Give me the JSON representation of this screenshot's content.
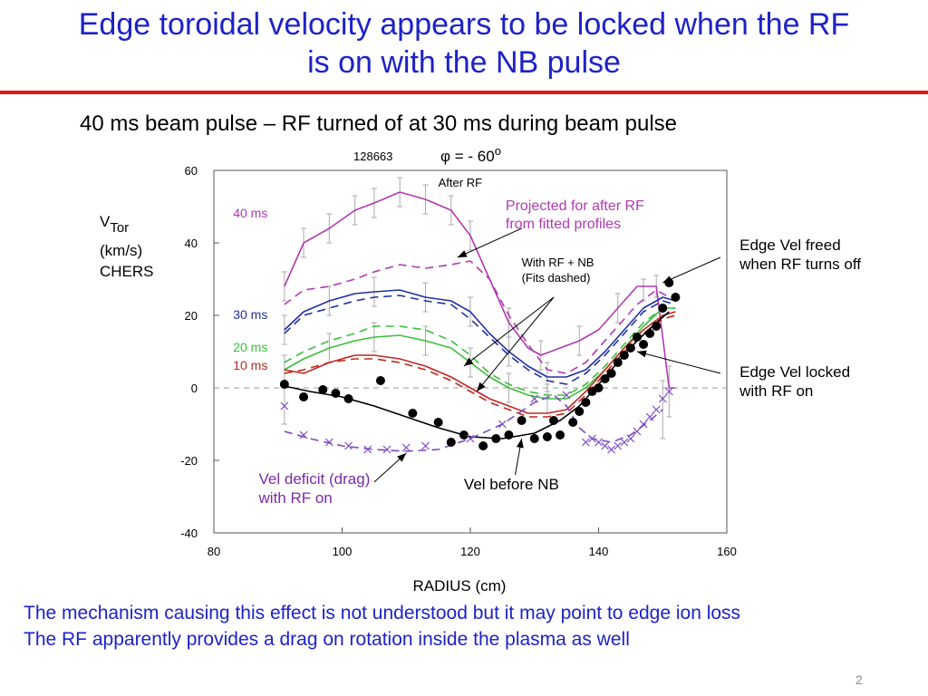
{
  "slide": {
    "title_line1": "Edge toroidal velocity appears to be locked when the RF",
    "title_line2": "is on with the NB pulse",
    "subtitle": "40 ms beam pulse – RF turned of at 30 ms during beam pulse",
    "bottom_line1": "The mechanism causing this effect is not understood but it may point to edge ion loss",
    "bottom_line2": "The RF apparently provides a drag on rotation inside the plasma as well",
    "page_number": "2",
    "colors": {
      "title": "#1d22c8",
      "rule": "#e01818",
      "bottom_text": "#1d22c8"
    }
  },
  "chart_data": {
    "type": "line",
    "shot_label": "128663",
    "phi_label": "φ = - 60",
    "phi_degree": "o",
    "ylabel_line1": "V",
    "ylabel_sub": "Tor",
    "ylabel_line2": "(km/s)",
    "ylabel_line3": "CHERS",
    "xlabel": "RADIUS (cm)",
    "xlim": [
      80,
      160
    ],
    "ylim": [
      -40,
      60
    ],
    "x_ticks": [
      80,
      100,
      120,
      140,
      160
    ],
    "y_ticks": [
      -40,
      -20,
      0,
      20,
      40,
      60
    ],
    "grid": false,
    "zero_line": "dashed",
    "series": [
      {
        "name": "40 ms",
        "color": "#b03ab0",
        "style": "solid",
        "x": [
          91,
          94,
          98,
          102,
          105,
          109,
          113,
          117,
          120,
          123,
          126,
          129,
          131,
          134,
          137,
          140,
          143,
          146,
          149,
          151,
          152
        ],
        "y": [
          28,
          40,
          44,
          49,
          51,
          54,
          52,
          49,
          42,
          30,
          18,
          11,
          9,
          11,
          13,
          16,
          22,
          28,
          28,
          0,
          0
        ]
      },
      {
        "name": "",
        "color": "#b03ab0",
        "style": "dashed",
        "x": [
          91,
          94,
          98,
          102,
          105,
          109,
          113,
          117,
          120,
          123,
          126,
          129,
          132,
          135,
          138,
          140,
          143,
          146,
          149,
          151
        ],
        "y": [
          23,
          27,
          28,
          30,
          32,
          34,
          33,
          34,
          35,
          30,
          20,
          12,
          5,
          4,
          7,
          11,
          17,
          23,
          27,
          25
        ]
      },
      {
        "name": "30 ms",
        "color": "#2230a0",
        "style": "solid",
        "x": [
          91,
          94,
          98,
          102,
          105,
          109,
          113,
          117,
          120,
          123,
          126,
          129,
          132,
          135,
          138,
          141,
          144,
          147,
          150,
          152
        ],
        "y": [
          16,
          21,
          24,
          26,
          26.5,
          27,
          25,
          24,
          21,
          15,
          10,
          6,
          3,
          3,
          5,
          10,
          16,
          22,
          25,
          24
        ]
      },
      {
        "name": "",
        "color": "#2230a0",
        "style": "dashed",
        "x": [
          91,
          94,
          98,
          102,
          105,
          109,
          113,
          117,
          120,
          123,
          126,
          129,
          132,
          135,
          138,
          141,
          144,
          147,
          150,
          152
        ],
        "y": [
          15,
          20,
          22,
          24,
          25,
          25.5,
          24,
          23,
          19,
          14,
          9,
          5,
          2,
          1,
          4,
          9,
          15,
          21,
          24,
          23
        ]
      },
      {
        "name": "20 ms",
        "color": "#3cbf3c",
        "style": "solid",
        "x": [
          91,
          94,
          98,
          102,
          105,
          109,
          113,
          117,
          120,
          123,
          126,
          129,
          132,
          135,
          138,
          141,
          144,
          147,
          150,
          152
        ],
        "y": [
          5,
          8,
          11,
          13,
          14,
          14.5,
          13,
          11,
          7,
          3,
          0,
          -2,
          -3,
          -3,
          0,
          5,
          11,
          17,
          22,
          22
        ]
      },
      {
        "name": "",
        "color": "#3cbf3c",
        "style": "dashed",
        "x": [
          91,
          94,
          98,
          102,
          105,
          109,
          113,
          117,
          120,
          123,
          126,
          129,
          132,
          135,
          138,
          141,
          144,
          147,
          150,
          152
        ],
        "y": [
          7,
          10,
          13,
          15,
          17,
          17,
          16,
          13,
          9,
          4,
          1,
          -1,
          -2,
          -2,
          1,
          6,
          12,
          18,
          22,
          22
        ]
      },
      {
        "name": "10 ms",
        "color": "#c02820",
        "style": "solid",
        "x": [
          91,
          94,
          98,
          102,
          105,
          109,
          113,
          117,
          120,
          123,
          126,
          129,
          132,
          135,
          138,
          141,
          144,
          147,
          150,
          152
        ],
        "y": [
          5,
          4,
          7,
          9,
          9,
          8,
          6,
          3,
          0,
          -3,
          -5,
          -7,
          -7,
          -6,
          -1,
          5,
          11,
          16,
          20,
          21
        ]
      },
      {
        "name": "",
        "color": "#c02820",
        "style": "dashed",
        "x": [
          91,
          94,
          98,
          102,
          105,
          109,
          113,
          117,
          120,
          123,
          126,
          129,
          132,
          135,
          138,
          141,
          144,
          147,
          150,
          152
        ],
        "y": [
          4,
          5,
          7,
          8,
          8,
          7,
          5,
          2,
          -1,
          -4,
          -6,
          -8,
          -8,
          -7,
          -2,
          4,
          10,
          15,
          19,
          20
        ]
      },
      {
        "name": "",
        "color": "#000000",
        "style": "solid",
        "x": [
          91,
          95,
          100,
          105,
          110,
          115,
          120,
          125,
          130,
          134,
          137,
          140,
          143,
          146,
          149,
          151
        ],
        "y": [
          0.5,
          -1,
          -2.5,
          -5,
          -8,
          -11,
          -13.5,
          -14,
          -12.5,
          -9,
          -5,
          1,
          7,
          13,
          18,
          21
        ]
      },
      {
        "name": "",
        "color": "#7a4ac0",
        "style": "dashed",
        "x": [
          91,
          95,
          100,
          105,
          110,
          115,
          120,
          125,
          130,
          133,
          135,
          137,
          139,
          142,
          145,
          148,
          150
        ],
        "y": [
          -12,
          -14,
          -16,
          -17,
          -17.5,
          -17,
          -14,
          -10,
          -4,
          -2,
          -5,
          -11,
          -14,
          -15,
          -13,
          -9,
          -6
        ]
      }
    ],
    "scatter_series": [
      {
        "name": "",
        "marker": "filled-circle",
        "color": "#000000",
        "x": [
          91,
          94,
          97,
          99,
          101,
          106,
          111,
          115,
          117,
          119,
          122,
          124,
          126,
          128,
          130,
          132,
          133,
          134,
          136,
          137,
          138,
          139,
          140,
          141,
          142,
          143,
          144,
          145,
          146,
          147,
          148,
          149,
          150,
          151,
          152
        ],
        "y": [
          1,
          -2.5,
          -0.5,
          -1.5,
          -3,
          2,
          -7,
          -9.5,
          -15,
          -13,
          -16,
          -14,
          -13,
          -9,
          -14,
          -13.5,
          -9,
          -13,
          -9.5,
          -6.5,
          -4,
          -1,
          0,
          2.5,
          4,
          7,
          9,
          11,
          14,
          12,
          15,
          17,
          22,
          29,
          25
        ]
      },
      {
        "name": "",
        "marker": "x",
        "color": "#7a4ac0",
        "x": [
          91,
          94,
          98,
          101,
          104,
          107,
          110,
          113,
          120,
          125,
          130,
          135,
          138,
          139,
          140,
          141,
          142,
          143,
          144,
          145,
          146,
          147,
          148,
          149,
          150,
          151
        ],
        "y": [
          -5,
          -13,
          -15,
          -16,
          -17,
          -17,
          -16.5,
          -16,
          -14,
          -10,
          -3,
          -2,
          -15,
          -14,
          -15,
          -16,
          -17,
          -16,
          -15,
          -14,
          -12,
          -10,
          -8,
          -6,
          -3,
          -1
        ]
      }
    ],
    "error_bars": [
      {
        "x": 91,
        "y": 28,
        "err": 4
      },
      {
        "x": 94,
        "y": 40,
        "err": 4
      },
      {
        "x": 98,
        "y": 44,
        "err": 4
      },
      {
        "x": 102,
        "y": 49,
        "err": 4
      },
      {
        "x": 105,
        "y": 51,
        "err": 4
      },
      {
        "x": 109,
        "y": 54,
        "err": 4
      },
      {
        "x": 113,
        "y": 52,
        "err": 4
      },
      {
        "x": 117,
        "y": 49,
        "err": 4
      },
      {
        "x": 120,
        "y": 42,
        "err": 4
      },
      {
        "x": 126,
        "y": 18,
        "err": 4
      },
      {
        "x": 131,
        "y": 9,
        "err": 4
      },
      {
        "x": 137,
        "y": 13,
        "err": 4
      },
      {
        "x": 143,
        "y": 22,
        "err": 4
      },
      {
        "x": 91,
        "y": 16,
        "err": 4
      },
      {
        "x": 98,
        "y": 24,
        "err": 4
      },
      {
        "x": 105,
        "y": 26.5,
        "err": 4
      },
      {
        "x": 113,
        "y": 25,
        "err": 4
      },
      {
        "x": 120,
        "y": 21,
        "err": 4
      },
      {
        "x": 126,
        "y": 10,
        "err": 4
      },
      {
        "x": 132,
        "y": 3,
        "err": 4
      },
      {
        "x": 91,
        "y": 5,
        "err": 4
      },
      {
        "x": 98,
        "y": 11,
        "err": 4
      },
      {
        "x": 105,
        "y": 14,
        "err": 4
      },
      {
        "x": 113,
        "y": 13,
        "err": 4
      },
      {
        "x": 120,
        "y": 7,
        "err": 4
      },
      {
        "x": 126,
        "y": 0,
        "err": 4
      },
      {
        "x": 132,
        "y": -3,
        "err": 4
      },
      {
        "x": 91,
        "y": -5,
        "err": 5
      },
      {
        "x": 150,
        "y": -6,
        "err": 8
      },
      {
        "x": 151,
        "y": -1,
        "err": 7
      },
      {
        "x": 147,
        "y": 27,
        "err": 3
      },
      {
        "x": 149,
        "y": 28,
        "err": 3
      }
    ],
    "series_labels": [
      {
        "text": "40 ms",
        "color": "#b03ab0",
        "x": 83,
        "y": 47
      },
      {
        "text": "30 ms",
        "color": "#2230a0",
        "x": 83,
        "y": 19
      },
      {
        "text": "20 ms",
        "color": "#3cbf3c",
        "x": 83,
        "y": 10
      },
      {
        "text": "10 ms",
        "color": "#c02820",
        "x": 83,
        "y": 5
      }
    ],
    "annotations": [
      {
        "id": "after-rf",
        "lines": [
          "After RF"
        ],
        "color": "#000000",
        "size": 13,
        "x": 115,
        "y": 55.5,
        "arrow": null
      },
      {
        "id": "projected",
        "lines": [
          "Projected for after RF",
          "from fitted profiles"
        ],
        "color": "#b03ab0",
        "size": 16,
        "x": 125.5,
        "y": 49,
        "arrow": [
          [
            128,
            44
          ],
          [
            118,
            36
          ]
        ]
      },
      {
        "id": "with-rf-nb",
        "lines": [
          "With RF + NB",
          "(Fits dashed)"
        ],
        "color": "#000000",
        "size": 13,
        "x": 128,
        "y": 33.5,
        "arrow": [
          [
            133,
            25
          ],
          [
            119,
            6
          ]
        ]
      },
      {
        "id": "with-rf-nb-2",
        "lines": [],
        "color": "#000000",
        "size": 13,
        "x": 0,
        "y": 0,
        "arrow": [
          [
            133,
            25
          ],
          [
            121,
            -1
          ]
        ]
      },
      {
        "id": "edge-freed",
        "lines": [
          "Edge Vel freed",
          "when RF turns off"
        ],
        "color": "#000000",
        "size": 17,
        "x": 162,
        "y": 38,
        "arrow": [
          [
            159,
            36
          ],
          [
            150,
            29
          ]
        ]
      },
      {
        "id": "edge-locked",
        "lines": [
          "Edge Vel locked",
          "with RF on"
        ],
        "color": "#000000",
        "size": 17,
        "x": 162,
        "y": 3,
        "arrow": [
          [
            159,
            4
          ],
          [
            146,
            10
          ]
        ]
      },
      {
        "id": "vel-deficit",
        "lines": [
          "Vel deficit (drag)",
          "with RF on"
        ],
        "color": "#7a2aa8",
        "size": 17,
        "x": 87,
        "y": -26.5,
        "arrow": [
          [
            105,
            -26
          ],
          [
            110,
            -18
          ]
        ]
      },
      {
        "id": "vel-before-nb",
        "lines": [
          "Vel before NB"
        ],
        "color": "#000000",
        "size": 17,
        "x": 119,
        "y": -28,
        "arrow": [
          [
            127,
            -24
          ],
          [
            128,
            -14
          ]
        ]
      }
    ]
  }
}
